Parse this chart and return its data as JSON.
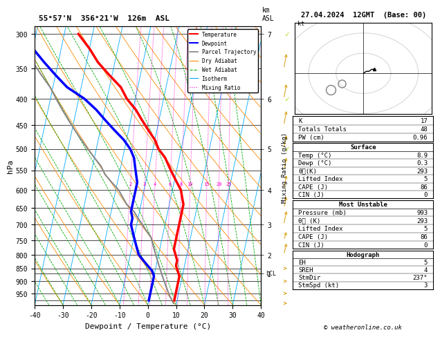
{
  "title_left": "55°57'N  356°21'W  126m  ASL",
  "title_right": "27.04.2024  12GMT  (Base: 00)",
  "xlabel": "Dewpoint / Temperature (°C)",
  "ylabel_left": "hPa",
  "ylabel_right2": "Mixing Ratio (g/kg)",
  "pressure_ticks": [
    300,
    350,
    400,
    450,
    500,
    550,
    600,
    650,
    700,
    750,
    800,
    850,
    900,
    950
  ],
  "xlim": [
    -40,
    40
  ],
  "pmin": 290,
  "pmax": 1000,
  "km_tick_pressures": [
    300,
    400,
    500,
    600,
    700,
    800,
    870
  ],
  "km_tick_values": [
    "7",
    "6",
    "5",
    "4",
    "3",
    "2",
    "1"
  ],
  "lcl_km_label": "LCL",
  "skew_factor": 17,
  "temperature_data": {
    "pressure": [
      300,
      320,
      340,
      360,
      380,
      400,
      420,
      440,
      460,
      480,
      500,
      520,
      540,
      560,
      580,
      600,
      620,
      640,
      660,
      680,
      700,
      720,
      740,
      760,
      780,
      800,
      820,
      840,
      860,
      880,
      900,
      920,
      940,
      960,
      980
    ],
    "temp": [
      -45,
      -40,
      -36,
      -31,
      -26,
      -23,
      -19,
      -16,
      -13,
      -10,
      -8,
      -5,
      -3,
      -1,
      1,
      3,
      4,
      5,
      5,
      5,
      5,
      5,
      5,
      5,
      5,
      6,
      7,
      7,
      8,
      9,
      9,
      9,
      9,
      9,
      9
    ]
  },
  "dewpoint_data": {
    "pressure": [
      300,
      320,
      340,
      360,
      380,
      400,
      420,
      440,
      460,
      480,
      500,
      520,
      540,
      560,
      580,
      600,
      620,
      640,
      660,
      680,
      700,
      720,
      740,
      760,
      780,
      800,
      820,
      840,
      860,
      880,
      900,
      920,
      940,
      960,
      980
    ],
    "temp": [
      -65,
      -60,
      -55,
      -50,
      -45,
      -38,
      -33,
      -29,
      -25,
      -21,
      -18,
      -16,
      -15,
      -14,
      -13,
      -13,
      -13,
      -13,
      -13,
      -12,
      -12,
      -11,
      -10,
      -9,
      -8,
      -7,
      -5,
      -3,
      -1,
      0,
      0,
      0,
      0,
      0,
      0
    ]
  },
  "parcel_data": {
    "pressure": [
      993,
      960,
      940,
      920,
      900,
      880,
      860,
      840,
      820,
      800,
      780,
      760,
      740,
      720,
      700,
      680,
      660,
      640,
      620,
      600,
      580,
      560,
      540,
      520,
      500,
      480,
      460,
      440,
      420,
      400,
      380,
      360,
      340,
      320,
      300
    ],
    "temp": [
      9,
      7,
      6,
      5,
      4,
      3,
      2,
      1,
      0,
      -1,
      -2,
      -3,
      -4,
      -6,
      -8,
      -10,
      -12,
      -15,
      -17,
      -19,
      -22,
      -25,
      -27,
      -30,
      -33,
      -36,
      -39,
      -42,
      -45,
      -48,
      -51,
      -55,
      -59,
      -63,
      -67
    ]
  },
  "isotherm_color": "#00AAFF",
  "dry_adiabat_color": "#FF8800",
  "wet_adiabat_color": "#00AA00",
  "mixing_ratio_color": "#FF00CC",
  "temp_color": "#FF0000",
  "dewpoint_color": "#0000FF",
  "parcel_color": "#888888",
  "lcl_pressure": 870,
  "stats": {
    "K": "17",
    "Totals Totals": "48",
    "PW (cm)": "0.96",
    "Surface_Temp": "8.9",
    "Surface_Dewp": "0.3",
    "Surface_theta_e": "293",
    "Surface_LI": "5",
    "Surface_CAPE": "86",
    "Surface_CIN": "0",
    "MU_Pressure": "993",
    "MU_theta_e": "293",
    "MU_LI": "5",
    "MU_CAPE": "86",
    "MU_CIN": "0",
    "Hodo_EH": "5",
    "Hodo_SREH": "4",
    "Hodo_StmDir": "237°",
    "Hodo_StmSpd": "3"
  },
  "copyright": "© weatheronline.co.uk",
  "wind_barb_pressures": [
    300,
    350,
    400,
    450,
    500,
    550,
    600,
    650,
    700,
    750,
    800,
    850,
    900,
    950,
    993
  ],
  "wind_barb_u": [
    18,
    16,
    14,
    12,
    10,
    8,
    7,
    6,
    5,
    4,
    3,
    2,
    2,
    1,
    1
  ],
  "wind_barb_v": [
    -8,
    -7,
    -6,
    -5,
    -4,
    -3,
    -3,
    -2,
    -2,
    -1,
    -1,
    0,
    0,
    0,
    0
  ]
}
